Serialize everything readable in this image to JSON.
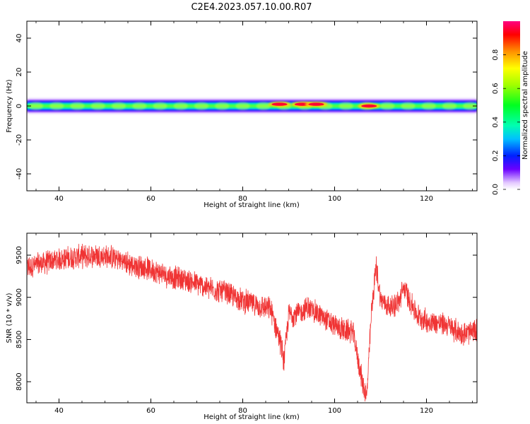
{
  "figure_title": "C2E4.2023.057.10.00.R07",
  "chart_data": [
    {
      "type": "heatmap",
      "xlabel": "Height of straight line (km)",
      "ylabel": "Frequency (Hz)",
      "xlim": [
        33,
        131
      ],
      "ylim": [
        -50,
        50
      ],
      "xticks": [
        40,
        60,
        80,
        100,
        120
      ],
      "yticks": [
        -40,
        -20,
        0,
        20,
        40
      ],
      "xtick_labels": [
        "40",
        "60",
        "80",
        "100",
        "120"
      ],
      "ytick_labels": [
        "-40",
        "-20",
        "0",
        "20",
        "40"
      ],
      "colorbar": {
        "label": "Normalized spectral amplitude",
        "range": [
          0,
          1
        ],
        "ticks": [
          0.0,
          0.2,
          0.4,
          0.6,
          0.8
        ],
        "tick_labels": [
          "0.0",
          "0.2",
          "0.4",
          "0.6",
          "0.8"
        ],
        "colormap": "rainbow"
      },
      "band_center_hz": 0,
      "band_halfwidth_hz": 3,
      "hotspots": [
        {
          "x_km": 88,
          "freq_hz": 1,
          "amplitude": 0.9
        },
        {
          "x_km": 93,
          "freq_hz": 1,
          "amplitude": 0.85
        },
        {
          "x_km": 96,
          "freq_hz": 1,
          "amplitude": 0.95
        },
        {
          "x_km": 107.5,
          "freq_hz": 0,
          "amplitude": 0.95
        }
      ]
    },
    {
      "type": "line",
      "xlabel": "Height of straight line (km)",
      "ylabel": "SNR (10 * v/v)",
      "xlim": [
        33,
        131
      ],
      "ylim": [
        7750,
        9760
      ],
      "xticks": [
        40,
        60,
        80,
        100,
        120
      ],
      "yticks": [
        8000,
        8500,
        9000,
        9500
      ],
      "xtick_labels": [
        "40",
        "60",
        "80",
        "100",
        "120"
      ],
      "ytick_labels": [
        "8000",
        "8500",
        "9000",
        "9500"
      ],
      "line_color": "#f03434",
      "series": [
        {
          "x": [
            33,
            36,
            40,
            44,
            48,
            52,
            56,
            60,
            64,
            68,
            72,
            76,
            80,
            84,
            86,
            88,
            89,
            90,
            92,
            94,
            96,
            98,
            100,
            102,
            104,
            105,
            106,
            107,
            108,
            109,
            110,
            112,
            114,
            115,
            118,
            120,
            124,
            128,
            131
          ],
          "y": [
            9350,
            9400,
            9450,
            9480,
            9500,
            9470,
            9380,
            9330,
            9250,
            9200,
            9120,
            9060,
            8960,
            8890,
            8860,
            8520,
            8250,
            8800,
            8800,
            8880,
            8820,
            8740,
            8660,
            8610,
            8590,
            8300,
            8000,
            7820,
            8800,
            9380,
            8980,
            8880,
            8940,
            9120,
            8780,
            8720,
            8680,
            8560,
            8600
          ]
        }
      ]
    }
  ]
}
